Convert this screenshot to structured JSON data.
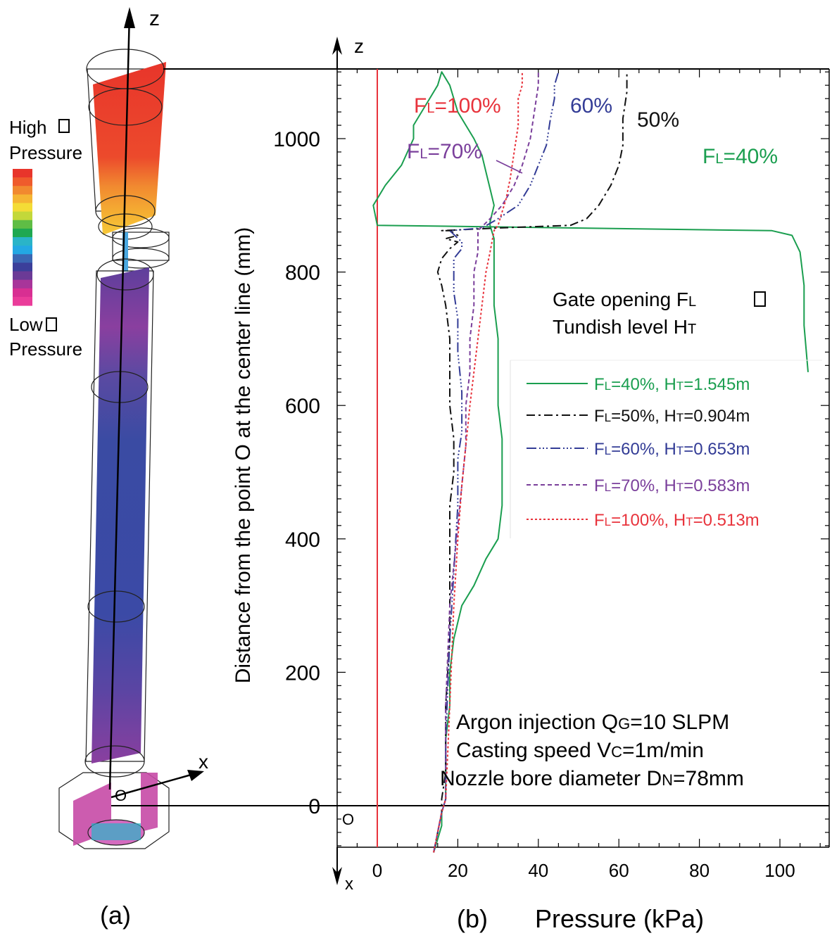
{
  "panel_a": {
    "axis_z": "z",
    "axis_x": "x",
    "origin": "O",
    "legend_high_1": "High",
    "legend_high_2": "Pressure",
    "legend_low_1": "Low",
    "legend_low_2": "Pressure",
    "caption": "(a)",
    "colorbar": [
      "#e8352b",
      "#ef5b2c",
      "#f1892f",
      "#f5b533",
      "#f4dc36",
      "#c3d83a",
      "#5fbd45",
      "#1fa851",
      "#2ab4c8",
      "#23a8e3",
      "#3a67b3",
      "#3b3f9a",
      "#6b3a96",
      "#a8359a",
      "#d82f92",
      "#ea3c9a"
    ]
  },
  "panel_b": {
    "caption": "(b)",
    "axis_z": "z",
    "axis_x": "x",
    "origin": "O",
    "info_title_1_main": "Gate opening F",
    "info_title_1_sub": "L",
    "info_title_2_main": "Tundish level  H",
    "info_title_2_sub": "T",
    "conditions": [
      {
        "main": "Argon injection Q",
        "sub": "G",
        "rest": "=10 SLPM"
      },
      {
        "main": "Casting speed V",
        "sub": "C",
        "rest": "=1m/min"
      },
      {
        "main": "Nozzle bore diameter D",
        "sub": "N",
        "rest": "=78mm"
      }
    ],
    "annotations": {
      "fl100": {
        "main": "F",
        "sub": "L",
        "rest": "=100%"
      },
      "fl70": {
        "main": "F",
        "sub": "L",
        "rest": "=70%"
      },
      "p60": "60%",
      "p50": "50%",
      "fl40": {
        "main": "F",
        "sub": "L",
        "rest": "=40%"
      }
    }
  },
  "chart_data": {
    "type": "line",
    "xlabel": "Pressure (kPa)",
    "ylabel": "Distance from the point O at the center line (mm)",
    "xlim": [
      -10,
      110
    ],
    "ylim": [
      -80,
      1100
    ],
    "xticks": [
      0,
      20,
      40,
      60,
      80,
      100
    ],
    "yticks": [
      0,
      200,
      400,
      600,
      800,
      1000
    ],
    "reference_line_x": 0,
    "series": [
      {
        "name": "FL=40%,  HT=1.545m",
        "legend": {
          "a": "F",
          "as": "L",
          "b": "=40%,  H",
          "bs": "T",
          "c": "=1.545m"
        },
        "color": "#1a9e4f",
        "dash": "",
        "x": [
          14,
          15,
          16,
          16,
          17,
          17,
          17,
          18,
          18,
          19,
          21,
          24,
          27,
          30,
          31,
          31,
          31,
          30,
          30,
          30,
          29,
          29,
          29,
          28,
          28,
          29,
          28,
          27,
          26,
          24,
          22,
          20,
          19,
          18,
          16,
          15,
          13,
          11,
          9,
          9,
          6,
          2,
          -1,
          0,
          98,
          103,
          105,
          106,
          106,
          107
        ],
        "y": [
          -70,
          -50,
          -30,
          -10,
          10,
          50,
          100,
          150,
          200,
          250,
          300,
          330,
          370,
          400,
          450,
          500,
          550,
          600,
          650,
          700,
          750,
          800,
          850,
          870,
          875,
          900,
          925,
          950,
          975,
          1000,
          1020,
          1040,
          1060,
          1080,
          1100,
          1080,
          1060,
          1040,
          1020,
          1000,
          960,
          930,
          900,
          870,
          862,
          855,
          830,
          780,
          720,
          650
        ]
      },
      {
        "name": "FL=50%,  HT=0.904m",
        "legend": {
          "a": "F",
          "as": "L",
          "b": "=50%,  H",
          "bs": "T",
          "c": "=0.904m"
        },
        "color": "#111111",
        "dash": "12,5,3,5",
        "x": [
          14,
          15,
          16,
          16,
          17,
          17,
          18,
          18,
          18,
          19,
          19,
          18,
          18,
          18,
          17,
          16,
          15,
          16,
          18,
          20,
          17,
          20,
          18,
          16,
          30,
          48,
          52,
          55,
          58,
          60,
          61,
          61,
          62,
          62
        ],
        "y": [
          -70,
          -40,
          -10,
          10,
          50,
          150,
          250,
          350,
          450,
          500,
          550,
          600,
          650,
          700,
          750,
          780,
          800,
          820,
          835,
          845,
          850,
          855,
          862,
          862,
          866,
          870,
          880,
          900,
          930,
          960,
          990,
          1030,
          1070,
          1100
        ]
      },
      {
        "name": "FL=60%,  HT=0.653m",
        "legend": {
          "a": "F",
          "as": "L",
          "b": "=60%,  H",
          "bs": "T",
          "c": "=0.653m"
        },
        "color": "#333c96",
        "dash": "14,4,2,3,2,3,2,4",
        "x": [
          14,
          15,
          16,
          17,
          17,
          18,
          19,
          20,
          20,
          21,
          21,
          20,
          20,
          19,
          19,
          19,
          21,
          21,
          18,
          26,
          30,
          35,
          38,
          40,
          42,
          43,
          44,
          44,
          45
        ],
        "y": [
          -70,
          -40,
          -10,
          10,
          100,
          250,
          350,
          450,
          520,
          560,
          620,
          680,
          730,
          770,
          800,
          820,
          835,
          845,
          862,
          866,
          880,
          900,
          930,
          960,
          990,
          1030,
          1060,
          1080,
          1100
        ]
      },
      {
        "name": "FL=70%,  HT=0.583m",
        "legend": {
          "a": "F",
          "as": "L",
          "b": "=70%,  H",
          "bs": "T",
          "c": "=0.583m"
        },
        "color": "#7a3f9b",
        "dash": "6,4",
        "x": [
          14,
          15,
          16,
          17,
          17,
          18,
          20,
          21,
          22,
          22,
          23,
          23,
          24,
          24,
          25,
          25,
          28,
          31,
          34,
          36,
          38,
          39,
          40,
          40
        ],
        "y": [
          -70,
          -40,
          -10,
          10,
          150,
          300,
          420,
          480,
          540,
          600,
          650,
          700,
          750,
          800,
          830,
          862,
          880,
          900,
          930,
          960,
          1000,
          1040,
          1080,
          1100
        ]
      },
      {
        "name": "FL=100%,  HT=0.513m",
        "legend": {
          "a": "F",
          "as": "L",
          "b": "=100%,  H",
          "bs": "T",
          "c": "=0.513m"
        },
        "color": "#e8333c",
        "dash": "3,3",
        "x": [
          14,
          15,
          16,
          17,
          18,
          19,
          20,
          21,
          22,
          23,
          24,
          25,
          26,
          27,
          28,
          29,
          30,
          31,
          32,
          33,
          34,
          35,
          35,
          36,
          36
        ],
        "y": [
          -70,
          -40,
          -10,
          10,
          150,
          300,
          400,
          480,
          540,
          600,
          650,
          700,
          750,
          800,
          830,
          862,
          870,
          890,
          910,
          940,
          980,
          1020,
          1060,
          1080,
          1100
        ]
      }
    ]
  }
}
